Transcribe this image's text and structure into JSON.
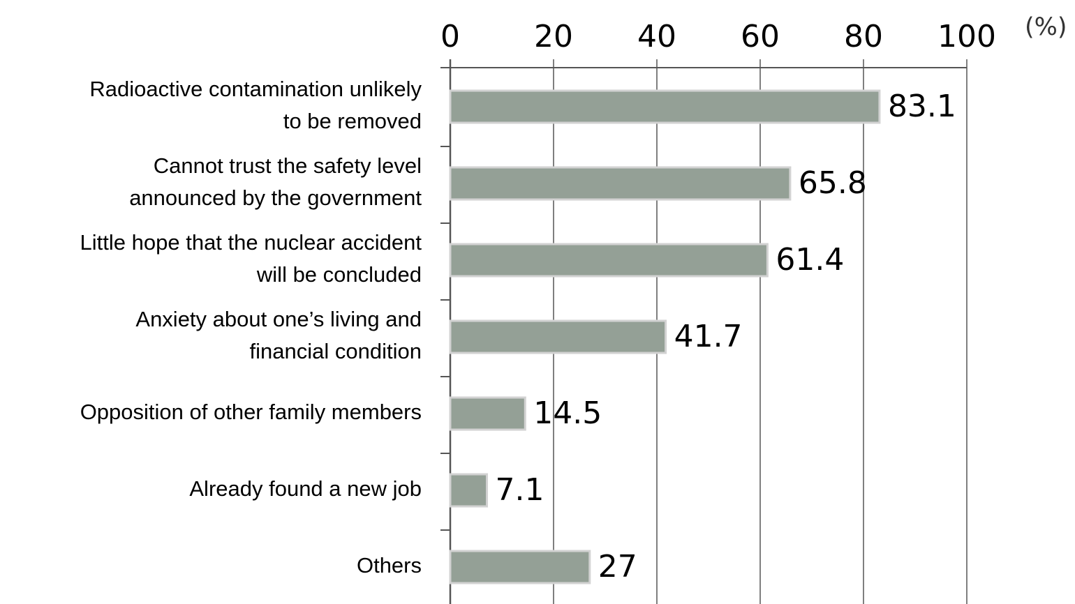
{
  "chart_data": {
    "type": "bar",
    "orientation": "horizontal",
    "categories": [
      [
        "Radioactive contamination unlikely",
        "to be removed"
      ],
      [
        "Cannot trust the safety level",
        "announced by the government"
      ],
      [
        "Little hope that the nuclear accident",
        "will be concluded"
      ],
      [
        "Anxiety about one’s living and",
        "financial condition"
      ],
      [
        "Opposition of other family members"
      ],
      [
        "Already found a new job"
      ],
      [
        "Others"
      ]
    ],
    "values": [
      83.1,
      65.8,
      61.4,
      41.7,
      14.5,
      7.1,
      27
    ],
    "value_labels": [
      "83.1",
      "65.8",
      "61.4",
      "41.7",
      "14.5",
      "7.1",
      "27"
    ],
    "x_ticks": [
      "0",
      "20",
      "40",
      "60",
      "80",
      "100"
    ],
    "x_unit": "(%)",
    "xlim": [
      0,
      100
    ],
    "grid": true,
    "legend": "none",
    "colors": {
      "bar_fill": "#94a096",
      "bar_edge": "#d2d2d2",
      "grid": "#555555"
    }
  }
}
